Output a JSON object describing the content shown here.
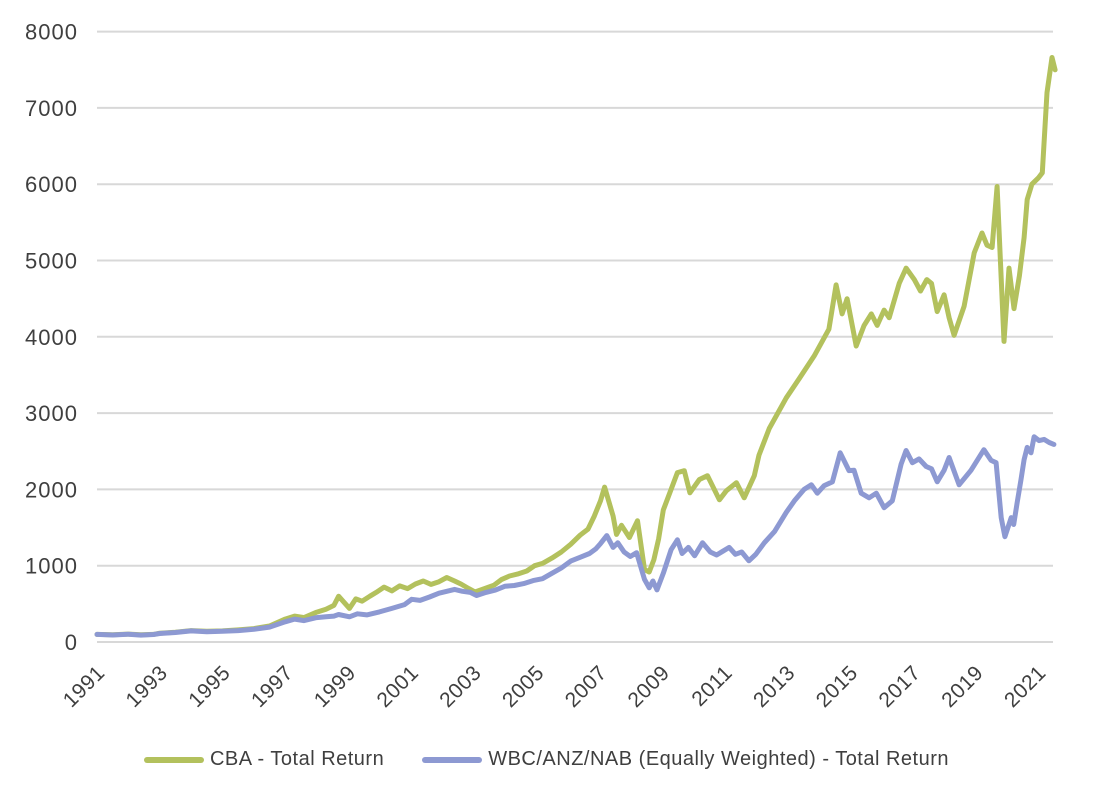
{
  "chart_data": {
    "type": "line",
    "title": "",
    "xlabel": "",
    "ylabel": "",
    "grid": true,
    "background_color": "#ffffff",
    "grid_color": "#d8d8d8",
    "label_color": "#3f3f3f",
    "legend_position": "bottom",
    "y_axis": {
      "min": 0,
      "max": 8000,
      "step": 1000,
      "tick_labels": [
        "0",
        "1000",
        "2000",
        "3000",
        "4000",
        "5000",
        "6000",
        "7000",
        "8000"
      ]
    },
    "x_axis": {
      "start": 1991,
      "end": 2021.6,
      "tick_years": [
        1991,
        1993,
        1995,
        1997,
        1999,
        2001,
        2003,
        2005,
        2007,
        2009,
        2011,
        2013,
        2015,
        2017,
        2019,
        2021
      ]
    },
    "series": [
      {
        "name": "CBA - Total Return",
        "color": "#b3c15d",
        "points": [
          [
            1991.0,
            100
          ],
          [
            1991.5,
            95
          ],
          [
            1992.0,
            104
          ],
          [
            1992.4,
            95
          ],
          [
            1992.8,
            100
          ],
          [
            1993.0,
            115
          ],
          [
            1993.5,
            128
          ],
          [
            1994.0,
            150
          ],
          [
            1994.5,
            140
          ],
          [
            1995.0,
            145
          ],
          [
            1995.5,
            158
          ],
          [
            1996.0,
            175
          ],
          [
            1996.5,
            210
          ],
          [
            1997.0,
            300
          ],
          [
            1997.3,
            340
          ],
          [
            1997.6,
            320
          ],
          [
            1998.0,
            390
          ],
          [
            1998.3,
            430
          ],
          [
            1998.55,
            480
          ],
          [
            1998.7,
            600
          ],
          [
            1999.05,
            440
          ],
          [
            1999.25,
            565
          ],
          [
            1999.45,
            535
          ],
          [
            1999.7,
            600
          ],
          [
            1999.9,
            650
          ],
          [
            2000.15,
            720
          ],
          [
            2000.4,
            670
          ],
          [
            2000.65,
            735
          ],
          [
            2000.9,
            700
          ],
          [
            2001.15,
            760
          ],
          [
            2001.4,
            800
          ],
          [
            2001.65,
            755
          ],
          [
            2001.9,
            790
          ],
          [
            2002.15,
            845
          ],
          [
            2002.4,
            800
          ],
          [
            2002.6,
            760
          ],
          [
            2002.85,
            700
          ],
          [
            2003.05,
            655
          ],
          [
            2003.35,
            700
          ],
          [
            2003.65,
            745
          ],
          [
            2003.9,
            820
          ],
          [
            2004.15,
            865
          ],
          [
            2004.4,
            890
          ],
          [
            2004.7,
            930
          ],
          [
            2004.95,
            1000
          ],
          [
            2005.2,
            1030
          ],
          [
            2005.5,
            1100
          ],
          [
            2005.8,
            1180
          ],
          [
            2006.1,
            1280
          ],
          [
            2006.4,
            1400
          ],
          [
            2006.65,
            1480
          ],
          [
            2006.85,
            1650
          ],
          [
            2007.05,
            1850
          ],
          [
            2007.18,
            2030
          ],
          [
            2007.45,
            1650
          ],
          [
            2007.56,
            1410
          ],
          [
            2007.72,
            1530
          ],
          [
            2007.97,
            1370
          ],
          [
            2008.23,
            1590
          ],
          [
            2008.45,
            950
          ],
          [
            2008.6,
            918
          ],
          [
            2008.75,
            1080
          ],
          [
            2008.9,
            1350
          ],
          [
            2009.05,
            1730
          ],
          [
            2009.3,
            2000
          ],
          [
            2009.5,
            2220
          ],
          [
            2009.72,
            2245
          ],
          [
            2009.9,
            1956
          ],
          [
            2010.2,
            2130
          ],
          [
            2010.46,
            2180
          ],
          [
            2010.84,
            1864
          ],
          [
            2011.06,
            1982
          ],
          [
            2011.38,
            2088
          ],
          [
            2011.63,
            1890
          ],
          [
            2011.95,
            2180
          ],
          [
            2012.1,
            2450
          ],
          [
            2012.43,
            2800
          ],
          [
            2012.97,
            3200
          ],
          [
            2013.38,
            3450
          ],
          [
            2013.86,
            3750
          ],
          [
            2014.33,
            4100
          ],
          [
            2014.56,
            4680
          ],
          [
            2014.75,
            4300
          ],
          [
            2014.91,
            4500
          ],
          [
            2015.2,
            3880
          ],
          [
            2015.45,
            4150
          ],
          [
            2015.68,
            4300
          ],
          [
            2015.87,
            4150
          ],
          [
            2016.09,
            4350
          ],
          [
            2016.25,
            4250
          ],
          [
            2016.57,
            4700
          ],
          [
            2016.79,
            4900
          ],
          [
            2017.05,
            4750
          ],
          [
            2017.25,
            4600
          ],
          [
            2017.45,
            4750
          ],
          [
            2017.6,
            4700
          ],
          [
            2017.78,
            4330
          ],
          [
            2018.0,
            4550
          ],
          [
            2018.16,
            4250
          ],
          [
            2018.32,
            4020
          ],
          [
            2018.64,
            4400
          ],
          [
            2018.96,
            5100
          ],
          [
            2019.21,
            5360
          ],
          [
            2019.37,
            5200
          ],
          [
            2019.53,
            5170
          ],
          [
            2019.69,
            5970
          ],
          [
            2019.91,
            3940
          ],
          [
            2020.07,
            4900
          ],
          [
            2020.23,
            4370
          ],
          [
            2020.4,
            4800
          ],
          [
            2020.55,
            5300
          ],
          [
            2020.65,
            5800
          ],
          [
            2020.8,
            6000
          ],
          [
            2021.0,
            6080
          ],
          [
            2021.13,
            6150
          ],
          [
            2021.28,
            7200
          ],
          [
            2021.44,
            7660
          ],
          [
            2021.54,
            7500
          ]
        ]
      },
      {
        "name": "WBC/ANZ/NAB (Equally Weighted) - Total Return",
        "color": "#8d99d2",
        "points": [
          [
            1991.0,
            100
          ],
          [
            1991.5,
            92
          ],
          [
            1992.0,
            102
          ],
          [
            1992.4,
            90
          ],
          [
            1992.8,
            98
          ],
          [
            1993.0,
            112
          ],
          [
            1993.5,
            124
          ],
          [
            1994.0,
            146
          ],
          [
            1994.5,
            135
          ],
          [
            1995.0,
            140
          ],
          [
            1995.5,
            150
          ],
          [
            1996.0,
            166
          ],
          [
            1996.5,
            195
          ],
          [
            1997.0,
            265
          ],
          [
            1997.3,
            300
          ],
          [
            1997.6,
            280
          ],
          [
            1998.0,
            320
          ],
          [
            1998.3,
            330
          ],
          [
            1998.55,
            340
          ],
          [
            1998.7,
            360
          ],
          [
            1999.05,
            330
          ],
          [
            1999.3,
            370
          ],
          [
            1999.6,
            355
          ],
          [
            2000.0,
            395
          ],
          [
            2000.4,
            440
          ],
          [
            2000.8,
            490
          ],
          [
            2001.03,
            560
          ],
          [
            2001.3,
            545
          ],
          [
            2001.6,
            590
          ],
          [
            2001.9,
            640
          ],
          [
            2002.15,
            665
          ],
          [
            2002.4,
            690
          ],
          [
            2002.65,
            665
          ],
          [
            2002.9,
            650
          ],
          [
            2003.1,
            610
          ],
          [
            2003.4,
            650
          ],
          [
            2003.7,
            680
          ],
          [
            2004.0,
            730
          ],
          [
            2004.3,
            740
          ],
          [
            2004.6,
            765
          ],
          [
            2004.9,
            805
          ],
          [
            2005.2,
            830
          ],
          [
            2005.5,
            900
          ],
          [
            2005.8,
            970
          ],
          [
            2006.1,
            1060
          ],
          [
            2006.4,
            1110
          ],
          [
            2006.7,
            1160
          ],
          [
            2006.9,
            1220
          ],
          [
            2007.05,
            1290
          ],
          [
            2007.25,
            1395
          ],
          [
            2007.45,
            1240
          ],
          [
            2007.6,
            1300
          ],
          [
            2007.8,
            1180
          ],
          [
            2008.0,
            1120
          ],
          [
            2008.2,
            1170
          ],
          [
            2008.45,
            820
          ],
          [
            2008.6,
            710
          ],
          [
            2008.72,
            800
          ],
          [
            2008.85,
            683
          ],
          [
            2009.05,
            900
          ],
          [
            2009.3,
            1210
          ],
          [
            2009.5,
            1340
          ],
          [
            2009.65,
            1160
          ],
          [
            2009.85,
            1240
          ],
          [
            2010.05,
            1130
          ],
          [
            2010.3,
            1300
          ],
          [
            2010.55,
            1180
          ],
          [
            2010.75,
            1140
          ],
          [
            2010.95,
            1190
          ],
          [
            2011.15,
            1240
          ],
          [
            2011.35,
            1150
          ],
          [
            2011.55,
            1180
          ],
          [
            2011.78,
            1064
          ],
          [
            2012.0,
            1150
          ],
          [
            2012.27,
            1300
          ],
          [
            2012.6,
            1450
          ],
          [
            2012.97,
            1700
          ],
          [
            2013.23,
            1850
          ],
          [
            2013.54,
            2000
          ],
          [
            2013.77,
            2060
          ],
          [
            2013.96,
            1950
          ],
          [
            2014.18,
            2050
          ],
          [
            2014.44,
            2100
          ],
          [
            2014.69,
            2480
          ],
          [
            2014.97,
            2247
          ],
          [
            2015.13,
            2250
          ],
          [
            2015.36,
            1950
          ],
          [
            2015.61,
            1890
          ],
          [
            2015.84,
            1950
          ],
          [
            2016.09,
            1760
          ],
          [
            2016.35,
            1850
          ],
          [
            2016.63,
            2330
          ],
          [
            2016.79,
            2510
          ],
          [
            2016.99,
            2350
          ],
          [
            2017.2,
            2400
          ],
          [
            2017.43,
            2300
          ],
          [
            2017.6,
            2270
          ],
          [
            2017.78,
            2100
          ],
          [
            2018.0,
            2250
          ],
          [
            2018.16,
            2418
          ],
          [
            2018.48,
            2060
          ],
          [
            2018.86,
            2250
          ],
          [
            2019.27,
            2520
          ],
          [
            2019.5,
            2380
          ],
          [
            2019.66,
            2350
          ],
          [
            2019.82,
            1630
          ],
          [
            2019.94,
            1380
          ],
          [
            2020.14,
            1630
          ],
          [
            2020.22,
            1540
          ],
          [
            2020.33,
            1830
          ],
          [
            2020.45,
            2120
          ],
          [
            2020.55,
            2390
          ],
          [
            2020.65,
            2550
          ],
          [
            2020.77,
            2480
          ],
          [
            2020.87,
            2690
          ],
          [
            2021.03,
            2640
          ],
          [
            2021.19,
            2655
          ],
          [
            2021.35,
            2615
          ],
          [
            2021.5,
            2590
          ]
        ]
      }
    ]
  }
}
